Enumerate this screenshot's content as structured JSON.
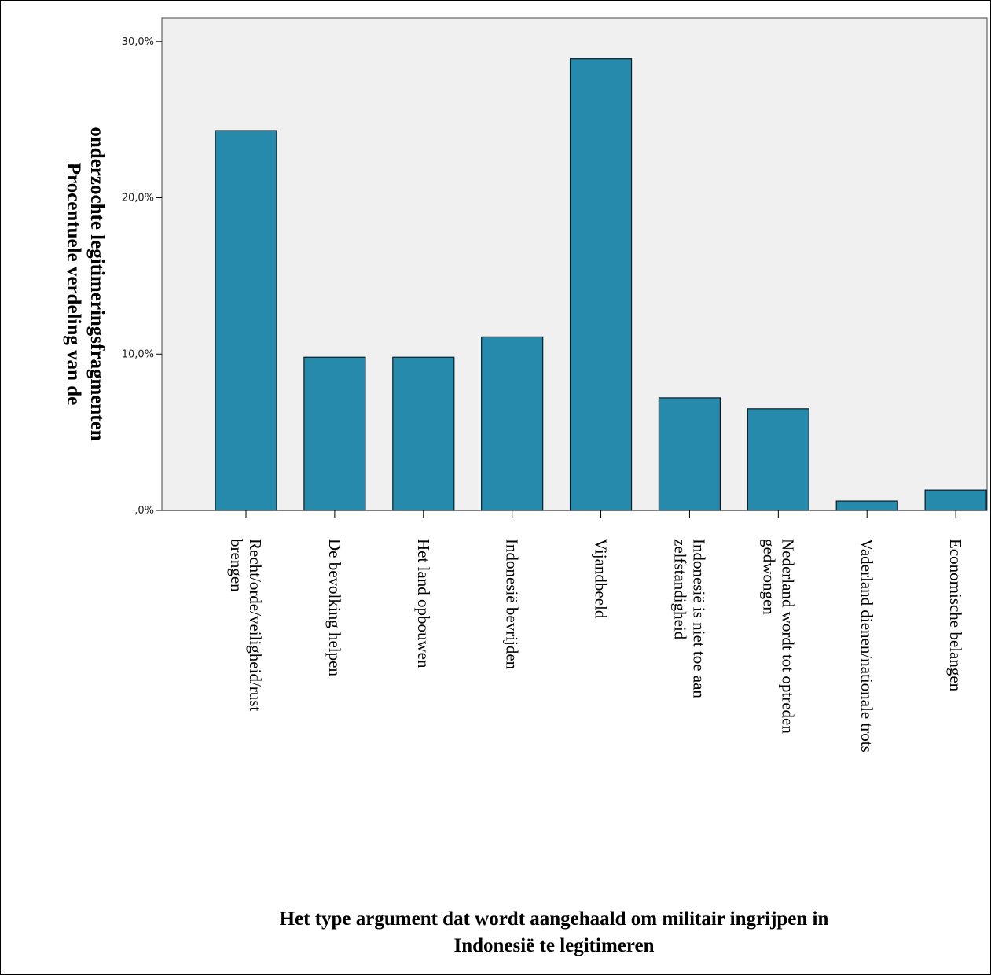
{
  "chart_data": {
    "type": "bar",
    "ylabel_lines": [
      "Procentuele verdeling van de",
      "onderzochte legitimeringsfragmenten"
    ],
    "xlabel_lines": [
      "Het type argument dat wordt aangehaald om militair ingrijpen in",
      "Indonesië te legitimeren"
    ],
    "ylim": [
      0,
      31.5
    ],
    "yticks": [
      0,
      10,
      20,
      30
    ],
    "ytick_labels": [
      ",0%",
      "10,0%",
      "20,0%",
      "30,0%"
    ],
    "grid": false,
    "categories": [
      [
        "Recht/orde/veiligheid/rust",
        "brengen"
      ],
      [
        "De bevolking helpen"
      ],
      [
        "Het land opbouwen"
      ],
      [
        "Indonesië bevrijden"
      ],
      [
        "Vijandbeeld"
      ],
      [
        "Indonesië is niet toe aan",
        "zelfstandigheid"
      ],
      [
        "Nederland wordt tot optreden",
        "gedwongen"
      ],
      [
        "Vaderland dienen/nationale trots"
      ],
      [
        "Economische belangen"
      ]
    ],
    "values": [
      24.3,
      9.8,
      9.8,
      11.1,
      28.9,
      7.2,
      6.5,
      0.6,
      1.3
    ],
    "colors": {
      "bar": "#258aab",
      "bar_stroke": "#0d1c22",
      "plot_bg": "#f0f0f0"
    }
  }
}
